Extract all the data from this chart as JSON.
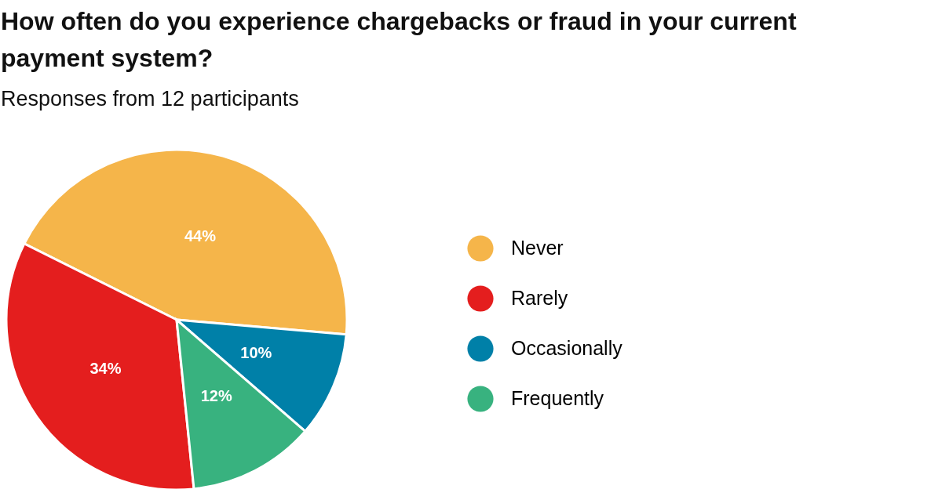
{
  "chart_data": {
    "type": "pie",
    "title": "How often do you experience chargebacks or fraud in your current payment system?",
    "subtitle": "Responses from 12 participants",
    "categories": [
      "Never",
      "Rarely",
      "Occasionally",
      "Frequently"
    ],
    "values": [
      44,
      34,
      10,
      12
    ],
    "colors": [
      "#f5b54a",
      "#e41e1e",
      "#0080a8",
      "#38b27f"
    ],
    "value_labels": [
      "44%",
      "34%",
      "10%",
      "12%"
    ],
    "legend": "right"
  }
}
